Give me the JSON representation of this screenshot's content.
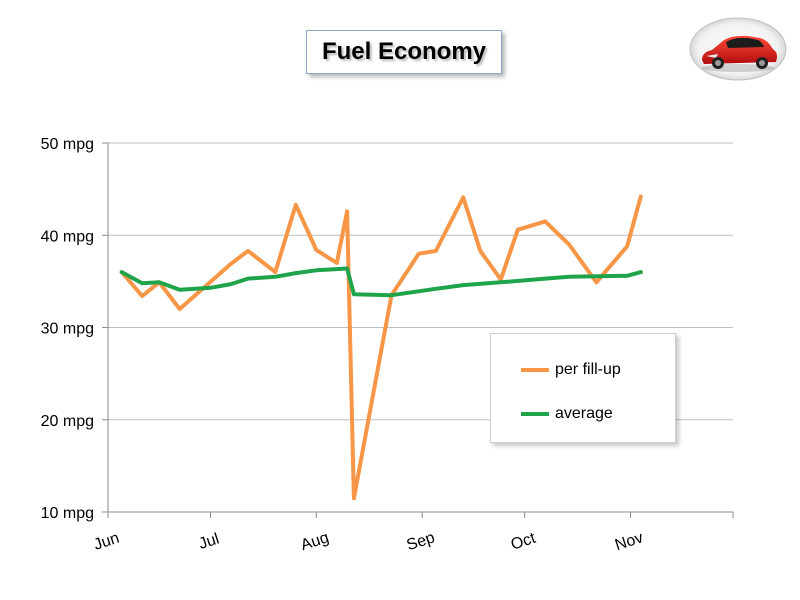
{
  "title": "Fuel Economy",
  "logo": {
    "icon": "red-hatchback-car-icon"
  },
  "colors": {
    "per_fill_up": "#f79646",
    "average": "#1fa44b",
    "grid": "#bdbdbd"
  },
  "chart_data": {
    "type": "line",
    "title": "Fuel Economy",
    "xlabel": "",
    "ylabel": "",
    "x_ticks": [
      "Jun",
      "Jul",
      "Aug",
      "Sep",
      "Oct",
      "Nov"
    ],
    "y_ticks": [
      "10 mpg",
      "20 mpg",
      "30 mpg",
      "40 mpg",
      "50 mpg"
    ],
    "ylim": [
      10,
      50
    ],
    "xlim": [
      "2010-06-01",
      "2010-12-01"
    ],
    "grid": "horizontal",
    "legend_position": "bottom-right",
    "series": [
      {
        "name": "per fill-up",
        "color": "#f79646",
        "points": [
          [
            "2010-06-05",
            36.0
          ],
          [
            "2010-06-11",
            33.4
          ],
          [
            "2010-06-16",
            34.9
          ],
          [
            "2010-06-22",
            32.0
          ],
          [
            "2010-07-07",
            36.9
          ],
          [
            "2010-07-12",
            38.3
          ],
          [
            "2010-07-20",
            36.0
          ],
          [
            "2010-07-26",
            43.3
          ],
          [
            "2010-08-01",
            38.4
          ],
          [
            "2010-08-07",
            37.0
          ],
          [
            "2010-08-10",
            42.6
          ],
          [
            "2010-08-12",
            11.5
          ],
          [
            "2010-08-23",
            33.5
          ],
          [
            "2010-08-31",
            38.0
          ],
          [
            "2010-09-05",
            38.3
          ],
          [
            "2010-09-13",
            44.1
          ],
          [
            "2010-09-18",
            38.3
          ],
          [
            "2010-09-24",
            35.2
          ],
          [
            "2010-09-29",
            40.6
          ],
          [
            "2010-10-07",
            41.5
          ],
          [
            "2010-10-14",
            39.0
          ],
          [
            "2010-10-22",
            34.9
          ],
          [
            "2010-10-31",
            38.8
          ],
          [
            "2010-11-04",
            44.2
          ]
        ]
      },
      {
        "name": "average",
        "color": "#1fa44b",
        "points": [
          [
            "2010-06-05",
            36.0
          ],
          [
            "2010-06-11",
            34.8
          ],
          [
            "2010-06-16",
            34.9
          ],
          [
            "2010-06-22",
            34.1
          ],
          [
            "2010-07-01",
            34.3
          ],
          [
            "2010-07-07",
            34.7
          ],
          [
            "2010-07-12",
            35.3
          ],
          [
            "2010-07-20",
            35.5
          ],
          [
            "2010-07-26",
            35.9
          ],
          [
            "2010-08-01",
            36.2
          ],
          [
            "2010-08-10",
            36.4
          ],
          [
            "2010-08-12",
            33.6
          ],
          [
            "2010-08-23",
            33.5
          ],
          [
            "2010-09-05",
            34.2
          ],
          [
            "2010-09-13",
            34.6
          ],
          [
            "2010-09-24",
            34.9
          ],
          [
            "2010-10-07",
            35.3
          ],
          [
            "2010-10-14",
            35.5
          ],
          [
            "2010-10-31",
            35.6
          ],
          [
            "2010-11-04",
            36.0
          ]
        ]
      }
    ]
  }
}
